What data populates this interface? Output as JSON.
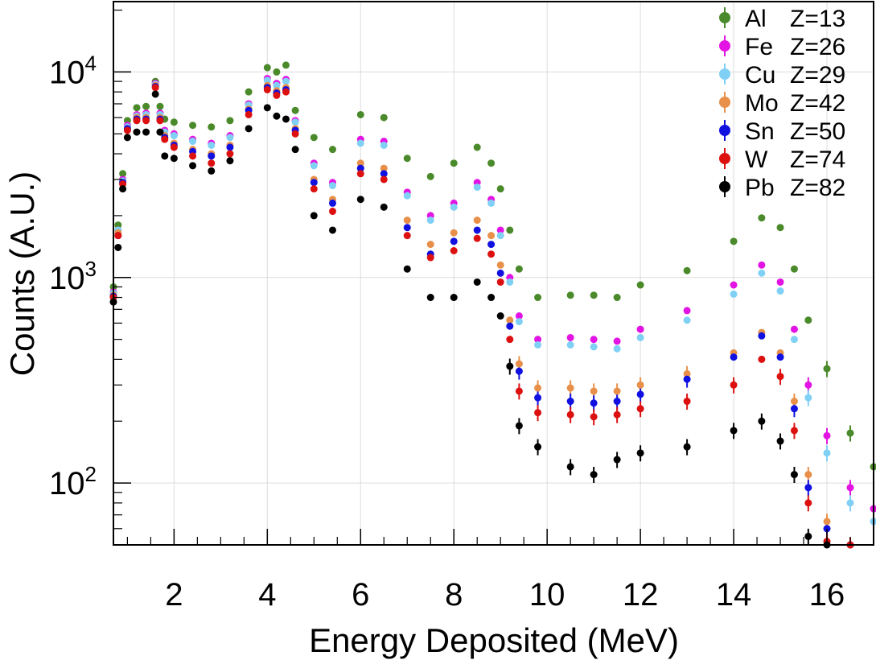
{
  "chart_data": {
    "type": "scatter",
    "title": "",
    "xlabel": "Energy Deposited (MeV)",
    "ylabel": "Counts (A.U.)",
    "xlim": [
      0.7,
      17.0
    ],
    "ylim": [
      50,
      22000
    ],
    "yscale": "log",
    "grid": true,
    "legend_position": "top-right",
    "error_bars": true,
    "x_ticks": [
      {
        "value": 2,
        "label": "2"
      },
      {
        "value": 4,
        "label": "4"
      },
      {
        "value": 6,
        "label": "6"
      },
      {
        "value": 8,
        "label": "8"
      },
      {
        "value": 10,
        "label": "10"
      },
      {
        "value": 12,
        "label": "12"
      },
      {
        "value": 14,
        "label": "14"
      },
      {
        "value": 16,
        "label": "16"
      }
    ],
    "y_ticks": [
      {
        "value": 100,
        "base": "10",
        "exp": "2"
      },
      {
        "value": 1000,
        "base": "10",
        "exp": "3"
      },
      {
        "value": 10000,
        "base": "10",
        "exp": "4"
      }
    ],
    "x": [
      0.7,
      0.8,
      0.9,
      1.0,
      1.2,
      1.4,
      1.6,
      1.7,
      1.8,
      2.0,
      2.4,
      2.8,
      3.2,
      3.6,
      4.0,
      4.2,
      4.4,
      4.6,
      5.0,
      5.4,
      6.0,
      6.5,
      7.0,
      7.5,
      8.0,
      8.5,
      8.8,
      9.0,
      9.2,
      9.4,
      9.8,
      10.5,
      11.0,
      11.5,
      12.0,
      13.0,
      14.0,
      14.6,
      15.0,
      15.3,
      15.6,
      16.0,
      16.5,
      17.0
    ],
    "series": [
      {
        "name": "Al",
        "label": "Z=13",
        "color": "#4a8a2a",
        "values": [
          900,
          1800,
          3200,
          5800,
          6700,
          6800,
          9000,
          6800,
          5900,
          5700,
          5500,
          5400,
          5800,
          8000,
          10500,
          10000,
          10800,
          6500,
          4800,
          4200,
          6200,
          6000,
          3800,
          3100,
          3600,
          4300,
          3600,
          2700,
          1700,
          1100,
          800,
          820,
          820,
          800,
          920,
          1080,
          1500,
          1950,
          1750,
          1100,
          620,
          360,
          175,
          120
        ]
      },
      {
        "name": "Fe",
        "label": "Z=26",
        "color": "#e314e3",
        "values": [
          850,
          1700,
          3000,
          5500,
          6200,
          6300,
          8800,
          6300,
          5200,
          5000,
          4700,
          4500,
          4900,
          7000,
          9300,
          8800,
          9200,
          5800,
          3600,
          2900,
          4700,
          4600,
          2600,
          2000,
          2300,
          2900,
          2400,
          1700,
          1000,
          650,
          500,
          510,
          500,
          490,
          560,
          690,
          920,
          1150,
          950,
          560,
          300,
          170,
          95,
          75
        ]
      },
      {
        "name": "Cu",
        "label": "Z=29",
        "color": "#80d0f5",
        "values": [
          840,
          1700,
          2950,
          5400,
          6100,
          6200,
          8700,
          6200,
          5100,
          4900,
          4600,
          4400,
          4800,
          6900,
          9100,
          8600,
          9000,
          5700,
          3500,
          2800,
          4500,
          4400,
          2500,
          1900,
          2200,
          2750,
          2300,
          1600,
          950,
          610,
          470,
          470,
          460,
          450,
          510,
          620,
          830,
          1050,
          860,
          500,
          260,
          140,
          80,
          65
        ]
      },
      {
        "name": "Mo",
        "label": "Z=42",
        "color": "#e8904a",
        "values": [
          820,
          1650,
          2900,
          5300,
          6000,
          6000,
          8600,
          6000,
          4900,
          4500,
          4200,
          4000,
          4400,
          6600,
          8600,
          8100,
          8400,
          5300,
          3000,
          2400,
          3600,
          3400,
          1900,
          1450,
          1650,
          1900,
          1600,
          1150,
          620,
          380,
          290,
          290,
          280,
          280,
          300,
          340,
          430,
          540,
          430,
          250,
          110,
          65,
          50,
          48
        ]
      },
      {
        "name": "Sn",
        "label": "Z=50",
        "color": "#1010e0",
        "values": [
          810,
          1600,
          2900,
          5300,
          5900,
          5900,
          8500,
          5900,
          4800,
          4400,
          4100,
          3900,
          4300,
          6500,
          8400,
          7900,
          8200,
          5200,
          2900,
          2300,
          3400,
          3200,
          1750,
          1300,
          1500,
          1700,
          1450,
          1050,
          580,
          350,
          260,
          250,
          245,
          250,
          270,
          320,
          410,
          520,
          410,
          230,
          95,
          60,
          50,
          48
        ]
      },
      {
        "name": "W",
        "label": "Z=74",
        "color": "#dd1010",
        "values": [
          800,
          1600,
          2850,
          5200,
          5800,
          5800,
          8400,
          5800,
          4700,
          4300,
          3900,
          3600,
          4000,
          6200,
          8200,
          7700,
          8000,
          5000,
          2700,
          2100,
          3200,
          3000,
          1600,
          1250,
          1350,
          1550,
          1300,
          950,
          500,
          280,
          220,
          215,
          210,
          215,
          230,
          250,
          300,
          400,
          330,
          180,
          80,
          52,
          50,
          48
        ]
      },
      {
        "name": "Pb",
        "label": "Z=82",
        "color": "#000000",
        "values": [
          760,
          1400,
          2700,
          4800,
          5100,
          5100,
          7800,
          5100,
          3900,
          3800,
          3500,
          3300,
          3700,
          5300,
          6700,
          6100,
          5900,
          4200,
          2000,
          1700,
          2400,
          2200,
          1100,
          800,
          800,
          950,
          800,
          650,
          370,
          190,
          150,
          120,
          110,
          130,
          140,
          150,
          180,
          200,
          160,
          110,
          55,
          50,
          48,
          48
        ]
      }
    ]
  }
}
